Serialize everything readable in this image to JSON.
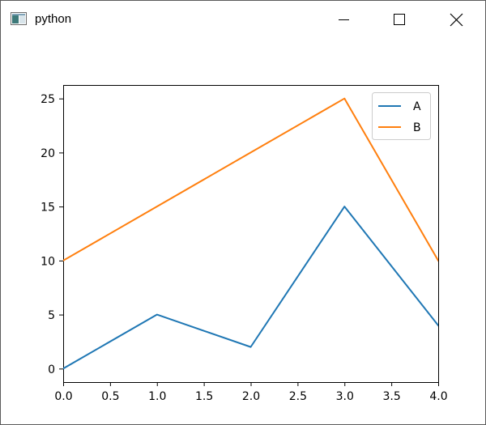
{
  "window": {
    "title": "python",
    "icon": "python-window-icon",
    "controls": [
      "minimize-icon",
      "maximize-icon",
      "close-icon"
    ]
  },
  "chart_data": {
    "type": "line",
    "x": [
      0,
      1,
      2,
      3,
      4
    ],
    "series": [
      {
        "name": "A",
        "values": [
          0,
          5,
          2,
          15,
          4
        ],
        "color": "#1f77b4"
      },
      {
        "name": "B",
        "values": [
          10,
          15,
          20,
          25,
          10
        ],
        "color": "#ff7f0e"
      }
    ],
    "xlim": [
      0,
      4
    ],
    "ylim": [
      -1.25,
      26.25
    ],
    "xticks": [
      0.0,
      0.5,
      1.0,
      1.5,
      2.0,
      2.5,
      3.0,
      3.5,
      4.0
    ],
    "xtick_labels": [
      "0.0",
      "0.5",
      "1.0",
      "1.5",
      "2.0",
      "2.5",
      "3.0",
      "3.5",
      "4.0"
    ],
    "yticks": [
      0,
      5,
      10,
      15,
      20,
      25
    ],
    "ytick_labels": [
      "0",
      "5",
      "10",
      "15",
      "20",
      "25"
    ],
    "title": "",
    "xlabel": "",
    "ylabel": "",
    "grid": false,
    "legend": "top-right"
  }
}
